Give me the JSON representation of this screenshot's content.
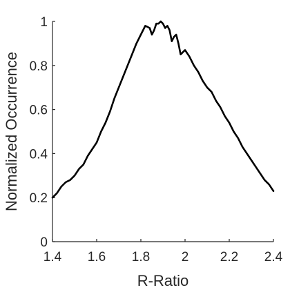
{
  "chart_data": {
    "type": "line",
    "title": "",
    "xlabel": "R-Ratio",
    "ylabel": "Normalized Occurrence",
    "xlim": [
      1.4,
      2.4
    ],
    "ylim": [
      0,
      1
    ],
    "xticks": [
      1.4,
      1.6,
      1.8,
      2.0,
      2.2,
      2.4
    ],
    "xtick_labels": [
      "1.4",
      "1.6",
      "1.8",
      "2",
      "2.2",
      "2.4"
    ],
    "yticks": [
      0,
      0.2,
      0.4,
      0.6,
      0.8,
      1.0
    ],
    "ytick_labels": [
      "0",
      "0.2",
      "0.4",
      "0.6",
      "0.8",
      "1"
    ],
    "grid": false,
    "legend": "none",
    "colors": {
      "line": "#000000",
      "axes": "#262626"
    },
    "series": [
      {
        "x": [
          1.4,
          1.42,
          1.44,
          1.46,
          1.48,
          1.5,
          1.52,
          1.54,
          1.56,
          1.58,
          1.6,
          1.62,
          1.64,
          1.66,
          1.68,
          1.7,
          1.72,
          1.74,
          1.76,
          1.78,
          1.8,
          1.82,
          1.84,
          1.85,
          1.86,
          1.87,
          1.88,
          1.89,
          1.9,
          1.91,
          1.92,
          1.93,
          1.94,
          1.95,
          1.96,
          1.97,
          1.98,
          2.0,
          2.02,
          2.04,
          2.06,
          2.08,
          2.1,
          2.12,
          2.14,
          2.16,
          2.18,
          2.2,
          2.22,
          2.24,
          2.26,
          2.28,
          2.3,
          2.32,
          2.34,
          2.36,
          2.38,
          2.4
        ],
        "values": [
          0.2,
          0.22,
          0.25,
          0.27,
          0.28,
          0.3,
          0.33,
          0.35,
          0.39,
          0.42,
          0.45,
          0.5,
          0.54,
          0.59,
          0.65,
          0.7,
          0.75,
          0.8,
          0.85,
          0.9,
          0.94,
          0.98,
          0.97,
          0.94,
          0.96,
          0.99,
          0.99,
          1.0,
          0.99,
          0.97,
          0.98,
          0.96,
          0.91,
          0.93,
          0.94,
          0.9,
          0.85,
          0.87,
          0.84,
          0.8,
          0.77,
          0.73,
          0.7,
          0.68,
          0.64,
          0.61,
          0.57,
          0.54,
          0.5,
          0.47,
          0.43,
          0.4,
          0.37,
          0.34,
          0.31,
          0.28,
          0.26,
          0.23
        ]
      }
    ]
  }
}
